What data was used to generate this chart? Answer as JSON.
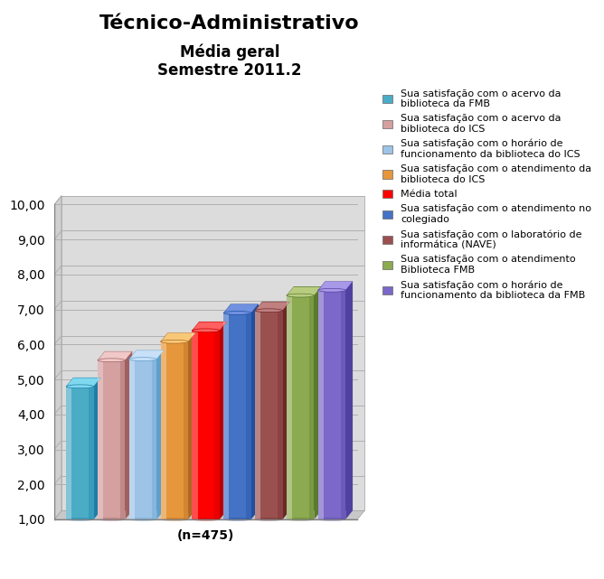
{
  "title1": "Técnico-Administrativo",
  "title2": "Média geral",
  "title3": "Semestre 2011.2",
  "xlabel_note": "(n=475)",
  "ylim": [
    1.0,
    10.0
  ],
  "yticks": [
    1.0,
    2.0,
    3.0,
    4.0,
    5.0,
    6.0,
    7.0,
    8.0,
    9.0,
    10.0
  ],
  "bar_values": [
    4.8,
    5.55,
    5.58,
    6.08,
    6.4,
    6.9,
    6.97,
    7.4,
    7.55
  ],
  "bar_colors": [
    "#4BACC6",
    "#D4A0A0",
    "#9DC3E6",
    "#E6973C",
    "#FF0000",
    "#4472C4",
    "#9B5050",
    "#8CAA4F",
    "#7B68C8"
  ],
  "bar_colors_dark": [
    "#1E7EA8",
    "#A06060",
    "#5F9FCC",
    "#B06820",
    "#BB0000",
    "#1E4FA0",
    "#6B2828",
    "#5A7A2F",
    "#5040A0"
  ],
  "bar_colors_light": [
    "#80D8F0",
    "#F0C8C8",
    "#C8E0F8",
    "#F8C878",
    "#FF6060",
    "#7090E0",
    "#C08080",
    "#B8CC80",
    "#A898E8"
  ],
  "legend_labels": [
    "Sua satisfação com o acervo da\nbiblioteca da FMB",
    "Sua satisfação com o acervo da\nbiblioteca do ICS",
    "Sua satisfação com o horário de\nfuncionamento da biblioteca do ICS",
    "Sua satisfação com o atendimento da\nbiblioteca do ICS",
    "Média total",
    "Sua satisfação com o atendimento no\ncolegiado",
    "Sua satisfação com o laboratório de\ninformática (NAVE)",
    "Sua satisfação com o atendimento\nBiblioteca FMB",
    "Sua satisfação com o horário de\nfuncionamento da biblioteca da FMB"
  ],
  "background_color": "#FFFFFF",
  "wall_color": "#E8E8E8",
  "floor_color": "#D8D8D8",
  "grid_color": "#B0B0B0",
  "title_fontsize": 16,
  "subtitle_fontsize": 12,
  "legend_fontsize": 8
}
